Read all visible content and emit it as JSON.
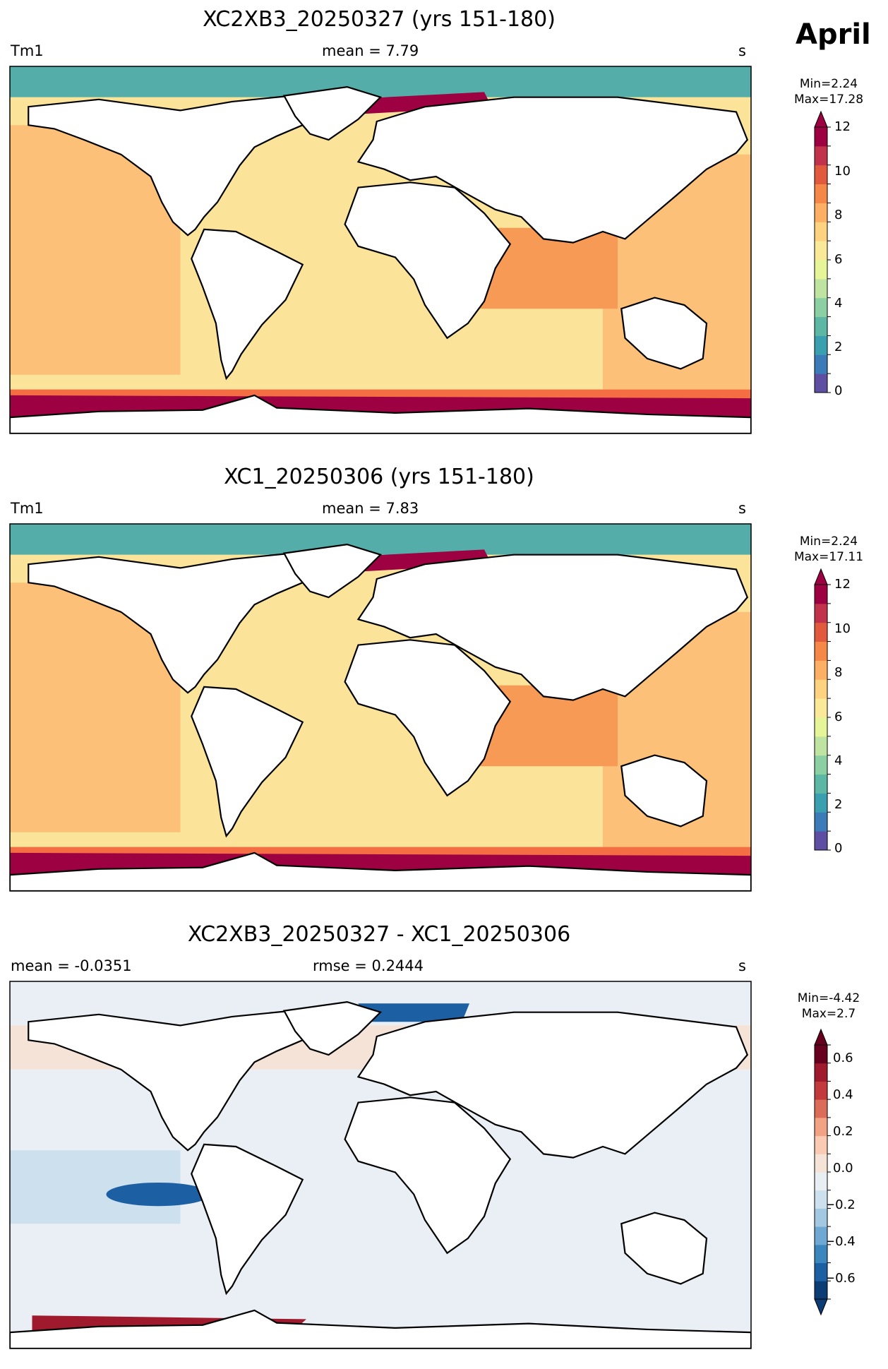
{
  "month_label": "April",
  "panels": [
    {
      "title": "XC2XB3_20250327 (yrs 151-180)",
      "left_label": "Tm1",
      "center_label": "mean = 7.79",
      "right_label": "s",
      "min_label": "Min=2.24",
      "max_label": "Max=17.28",
      "colorbar_ticks": [
        "0",
        "2",
        "4",
        "6",
        "8",
        "10",
        "12"
      ]
    },
    {
      "title": "XC1_20250306 (yrs 151-180)",
      "left_label": "Tm1",
      "center_label": "mean = 7.83",
      "right_label": "s",
      "min_label": "Min=2.24",
      "max_label": "Max=17.11",
      "colorbar_ticks": [
        "0",
        "2",
        "4",
        "6",
        "8",
        "10",
        "12"
      ]
    },
    {
      "title": "XC2XB3_20250327 - XC1_20250306",
      "left_label": "mean = -0.0351",
      "center_label": "rmse = 0.2444",
      "right_label": "s",
      "min_label": "Min=-4.42",
      "max_label": "Max=2.7",
      "colorbar_ticks": [
        "0.6",
        "0.4",
        "0.2",
        "0.0",
        "−0.2",
        "−0.4",
        "−0.6"
      ]
    }
  ],
  "colors": {
    "seq_scale": [
      "#5e4fa2",
      "#3b7bb8",
      "#3aa0b0",
      "#5cb7a5",
      "#8ccfa3",
      "#bfe3a0",
      "#e6f598",
      "#fbe99a",
      "#fdd382",
      "#fdb063",
      "#f58748",
      "#e25a3e",
      "#c1334a",
      "#9e0142"
    ],
    "div_scale": [
      "#0b3c73",
      "#1c5fa3",
      "#3b86bd",
      "#6fa8d2",
      "#a3c8e2",
      "#cde0ee",
      "#e8eef2",
      "#f6e3d8",
      "#fbcab2",
      "#f3a385",
      "#dc6c5a",
      "#c23a3c",
      "#9e1a2c",
      "#67001f"
    ],
    "ocean_seq": "#fbe49a",
    "pacific_seq": "#fdc078",
    "arctic_seq": "#55ada9",
    "southern_seq": "#9e0142",
    "ocean_div": "#e9eff4",
    "land": "#ffffff"
  }
}
